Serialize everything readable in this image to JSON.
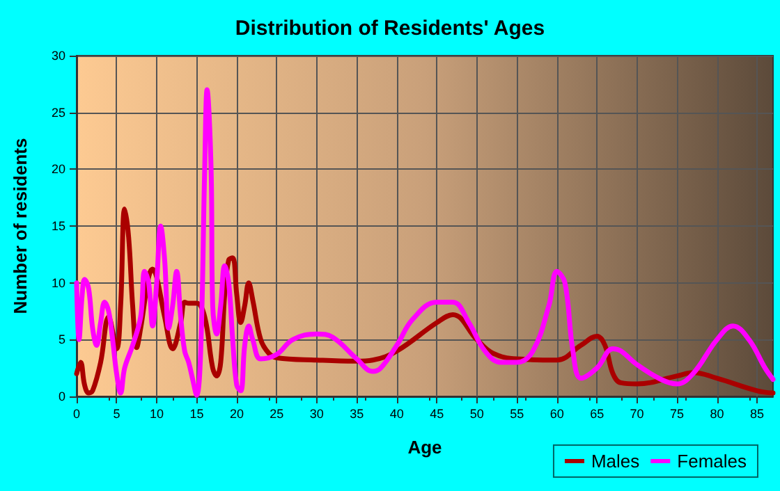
{
  "chart_data": {
    "type": "line",
    "title": "Distribution of Residents' Ages",
    "xlabel": "Age",
    "ylabel": "Number of residents",
    "xlim": [
      0,
      87
    ],
    "xticks": [
      0,
      5,
      10,
      15,
      20,
      25,
      30,
      35,
      40,
      45,
      50,
      55,
      60,
      65,
      70,
      75,
      80,
      85
    ],
    "ylim": [
      0,
      30
    ],
    "yticks": [
      0,
      5,
      10,
      15,
      20,
      25,
      30
    ],
    "grid": true,
    "legend": "bottom right",
    "marker": "none",
    "line_style": "solid",
    "series": [
      {
        "name": "Males",
        "color": "#aa0000",
        "x": [
          0,
          0.5,
          1,
          1.5,
          2,
          3,
          4,
          5,
          5.5,
          6,
          6.5,
          7,
          7.5,
          8,
          9,
          9.5,
          10,
          11,
          12,
          13,
          13.5,
          14,
          15,
          16,
          17,
          17.5,
          18,
          18.5,
          19,
          19.5,
          20,
          20.5,
          21,
          21.5,
          22,
          23,
          24,
          25,
          30,
          35,
          37,
          40,
          45,
          47,
          50,
          52,
          55,
          60,
          63,
          65,
          66,
          67,
          68,
          70,
          75,
          77,
          80,
          85,
          87
        ],
        "values": [
          2,
          3,
          1,
          0.3,
          0.5,
          3,
          7,
          4.2,
          8,
          16.5,
          14,
          8,
          4.3,
          6,
          10.5,
          11.2,
          10.5,
          7,
          4.2,
          6.5,
          8.3,
          8.2,
          8.2,
          7,
          2.5,
          1.8,
          3,
          9,
          12,
          12.2,
          9,
          6.5,
          8,
          10,
          8.5,
          5,
          3.8,
          3.4,
          3.2,
          3.1,
          3.2,
          4,
          6.5,
          7.2,
          5,
          3.8,
          3.3,
          3.2,
          4.5,
          5.3,
          4.5,
          2,
          1.2,
          1.1,
          1.8,
          2.1,
          1.6,
          0.5,
          0.3
        ]
      },
      {
        "name": "Females",
        "color": "#ff00ff",
        "x": [
          0,
          0.3,
          0.7,
          1,
          1.5,
          2,
          2.5,
          3,
          3.5,
          4,
          4.5,
          5,
          5.5,
          6,
          7,
          8,
          8.5,
          9,
          9.5,
          10,
          10.5,
          11,
          11.5,
          12,
          12.5,
          13,
          13.5,
          14,
          14.5,
          15,
          15.5,
          16,
          16.3,
          16.8,
          17,
          17.5,
          18,
          18.5,
          19,
          19.5,
          20,
          20.5,
          21,
          21.5,
          22,
          23,
          25,
          27,
          30,
          32,
          35,
          37,
          38,
          40,
          42,
          45,
          47,
          49,
          51,
          53,
          55,
          57,
          59,
          60,
          61,
          62,
          63,
          65,
          67,
          68,
          70,
          73,
          75,
          77,
          80,
          82,
          84,
          86,
          87
        ],
        "values": [
          10,
          5,
          9,
          10.3,
          9.5,
          6,
          4.5,
          6.5,
          8.3,
          7.5,
          5,
          2,
          0.3,
          2.5,
          4.5,
          7,
          11,
          10,
          6.2,
          10,
          15,
          12,
          6,
          8,
          11,
          7,
          4,
          3,
          1.5,
          0.1,
          4,
          20,
          27,
          20,
          8,
          5.5,
          8,
          11.5,
          10,
          5,
          1,
          0.5,
          4.5,
          6.2,
          5,
          3.3,
          3.7,
          5,
          5.5,
          5.2,
          3.3,
          2.2,
          2.5,
          4.5,
          6.8,
          8.3,
          8.3,
          6.5,
          4,
          3,
          3,
          4,
          8,
          11,
          10,
          4,
          1.6,
          2.5,
          4.2,
          4,
          2.8,
          1.5,
          1.1,
          2,
          5,
          6.2,
          5,
          2.5,
          1.5
        ]
      }
    ]
  }
}
